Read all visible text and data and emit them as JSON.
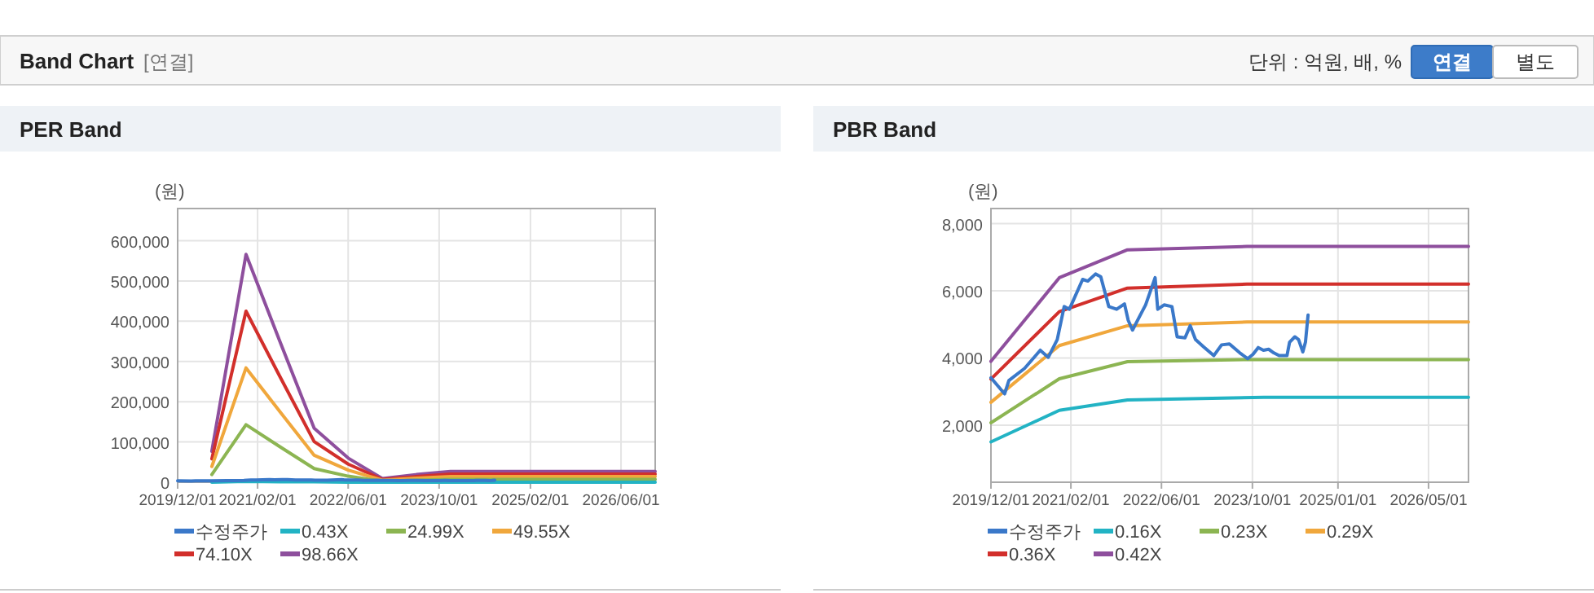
{
  "chart_data": [
    {
      "type": "other",
      "title": "Band Chart",
      "annotations": [
        "[연결]",
        "단위 : 억원, 배, %",
        "연결",
        "별도"
      ]
    },
    {
      "type": "line",
      "title": "PER Band",
      "ylabel": "(원)",
      "grid": true,
      "legend": "bottom",
      "xlim": [
        "2019-12-01",
        "2026-12-01"
      ],
      "xticks": [
        {
          "value": "2019-12-01",
          "label": "2019/12/01"
        },
        {
          "value": "2021-02-01",
          "label": "2021/02/01"
        },
        {
          "value": "2022-06-01",
          "label": "2022/06/01"
        },
        {
          "value": "2023-10-01",
          "label": "2023/10/01"
        },
        {
          "value": "2025-02-01",
          "label": "2025/02/01"
        },
        {
          "value": "2026-06-01",
          "label": "2026/06/01"
        }
      ],
      "ylim": [
        0,
        680000
      ],
      "yticks": [
        0,
        {
          "value": 100000,
          "label": "100,000"
        },
        {
          "value": 200000,
          "label": "200,000"
        },
        {
          "value": 300000,
          "label": "300,000"
        },
        {
          "value": 400000,
          "label": "400,000"
        },
        {
          "value": 500000,
          "label": "500,000"
        },
        {
          "value": 600000,
          "label": "600,000"
        }
      ],
      "series": [
        {
          "name": "수정주가",
          "color": "#3a78c9",
          "x": [
            "2019-12-01",
            "2020-02-12",
            "2020-03-06",
            "2020-05-29",
            "2020-08-21",
            "2020-10-03",
            "2020-11-20",
            "2020-12-27",
            "2021-01-24",
            "2021-04-05",
            "2021-05-03",
            "2021-06-13",
            "2021-07-11",
            "2021-08-23",
            "2021-10-04",
            "2021-11-15",
            "2021-12-05",
            "2021-12-28",
            "2022-02-08",
            "2022-03-08",
            "2022-04-28",
            "2022-05-12",
            "2022-06-15",
            "2022-07-27",
            "2022-08-24",
            "2022-10-05",
            "2022-11-02",
            "2022-11-30",
            "2023-01-11",
            "2023-03-08",
            "2023-04-19",
            "2023-05-31",
            "2023-07-26",
            "2023-09-06",
            "2023-10-04",
            "2023-11-01",
            "2023-11-29",
            "2023-12-27",
            "2024-01-24",
            "2024-02-21",
            "2024-04-03",
            "2024-04-17",
            "2024-05-15",
            "2024-06-04",
            "2024-06-27",
            "2024-07-11",
            "2024-07-25"
          ],
          "values": [
            3410,
            2930,
            3330,
            3690,
            4230,
            4020,
            4550,
            5530,
            5450,
            6340,
            6290,
            6500,
            6420,
            5530,
            5450,
            5610,
            5120,
            4830,
            5280,
            5580,
            6390,
            5450,
            5580,
            5530,
            4630,
            4600,
            4960,
            4550,
            4340,
            4070,
            4390,
            4420,
            4150,
            3980,
            4110,
            4310,
            4230,
            4260,
            4150,
            4070,
            4070,
            4470,
            4630,
            4550,
            4180,
            4470,
            5280
          ]
        },
        {
          "name": "0.43X",
          "color": "#22b3c4",
          "x": [
            "2020-06-01",
            "2020-12-01",
            "2021-06-01",
            "2021-12-01",
            "2022-06-01",
            "2022-12-01",
            "2023-06-01",
            "2023-12-01",
            "2026-12-01"
          ],
          "values": [
            0,
            2000,
            1000,
            1000,
            0,
            0,
            0,
            0,
            0
          ]
        },
        {
          "name": "24.99X",
          "color": "#8cb552",
          "x": [
            "2020-06-01",
            "2020-12-01",
            "2021-06-01",
            "2021-12-01",
            "2022-06-01",
            "2022-12-01",
            "2023-06-01",
            "2023-12-01",
            "2026-12-01"
          ],
          "values": [
            19000,
            143000,
            88000,
            34000,
            15000,
            2000,
            5000,
            7000,
            7000
          ]
        },
        {
          "name": "49.55X",
          "color": "#f0a73c",
          "x": [
            "2020-06-01",
            "2020-12-01",
            "2021-06-01",
            "2021-12-01",
            "2022-06-01",
            "2022-12-01",
            "2023-06-01",
            "2023-12-01",
            "2026-12-01"
          ],
          "values": [
            39000,
            284000,
            175000,
            67000,
            30000,
            5000,
            10000,
            14000,
            14000
          ]
        },
        {
          "name": "74.10X",
          "color": "#d22f2b",
          "x": [
            "2020-06-01",
            "2020-12-01",
            "2021-06-01",
            "2021-12-01",
            "2022-06-01",
            "2022-12-01",
            "2023-06-01",
            "2023-12-01",
            "2026-12-01"
          ],
          "values": [
            58000,
            425000,
            262000,
            101000,
            45000,
            7000,
            14000,
            20000,
            20000
          ]
        },
        {
          "name": "98.66X",
          "color": "#8e4f9d",
          "x": [
            "2020-06-01",
            "2020-12-01",
            "2021-06-01",
            "2021-12-01",
            "2022-06-01",
            "2022-12-01",
            "2023-06-01",
            "2023-12-01",
            "2026-12-01"
          ],
          "values": [
            77000,
            566000,
            349000,
            134000,
            60000,
            9000,
            19000,
            27000,
            27000
          ]
        }
      ]
    },
    {
      "type": "line",
      "title": "PBR Band",
      "ylabel": "(원)",
      "grid": true,
      "legend": "bottom",
      "xlim": [
        "2019-12-01",
        "2026-12-01"
      ],
      "xticks": [
        {
          "value": "2019-12-01",
          "label": "2019/12/01"
        },
        {
          "value": "2021-02-01",
          "label": "2021/02/01"
        },
        {
          "value": "2022-06-01",
          "label": "2022/06/01"
        },
        {
          "value": "2023-10-01",
          "label": "2023/10/01"
        },
        {
          "value": "2025-01-01",
          "label": "2025/01/01"
        },
        {
          "value": "2026-05-01",
          "label": "2026/05/01"
        }
      ],
      "ylim": [
        300,
        8450
      ],
      "yticks": [
        {
          "value": 2000,
          "label": "2,000"
        },
        {
          "value": 4000,
          "label": "4,000"
        },
        {
          "value": 6000,
          "label": "6,000"
        },
        {
          "value": 8000,
          "label": "8,000"
        }
      ],
      "series": [
        {
          "name": "수정주가",
          "color": "#3a78c9",
          "x": [
            "2019-12-01",
            "2020-02-12",
            "2020-03-06",
            "2020-05-29",
            "2020-08-21",
            "2020-10-03",
            "2020-11-20",
            "2020-12-27",
            "2021-01-24",
            "2021-04-05",
            "2021-05-03",
            "2021-06-13",
            "2021-07-11",
            "2021-08-23",
            "2021-10-04",
            "2021-11-15",
            "2021-12-05",
            "2021-12-28",
            "2022-02-08",
            "2022-03-08",
            "2022-04-28",
            "2022-05-12",
            "2022-06-15",
            "2022-07-27",
            "2022-08-24",
            "2022-10-05",
            "2022-11-02",
            "2022-11-30",
            "2023-01-11",
            "2023-03-08",
            "2023-04-19",
            "2023-05-31",
            "2023-07-26",
            "2023-09-06",
            "2023-10-04",
            "2023-11-01",
            "2023-11-29",
            "2023-12-27",
            "2024-01-24",
            "2024-02-21",
            "2024-04-03",
            "2024-04-17",
            "2024-05-15",
            "2024-06-04",
            "2024-06-27",
            "2024-07-11",
            "2024-07-25"
          ],
          "values": [
            3410,
            2930,
            3330,
            3690,
            4230,
            4020,
            4550,
            5530,
            5450,
            6340,
            6290,
            6500,
            6420,
            5530,
            5450,
            5610,
            5120,
            4830,
            5280,
            5580,
            6390,
            5450,
            5580,
            5530,
            4630,
            4600,
            4960,
            4550,
            4340,
            4070,
            4390,
            4420,
            4150,
            3980,
            4110,
            4310,
            4230,
            4260,
            4150,
            4070,
            4070,
            4470,
            4630,
            4550,
            4180,
            4470,
            5280
          ]
        },
        {
          "name": "0.16X",
          "color": "#22b3c4",
          "x": [
            "2019-12-01",
            "2020-12-01",
            "2021-12-01",
            "2023-12-01",
            "2026-12-01"
          ],
          "values": [
            1500,
            2440,
            2750,
            2830,
            2830
          ]
        },
        {
          "name": "0.23X",
          "color": "#8cb552",
          "x": [
            "2019-12-01",
            "2020-12-01",
            "2021-12-01",
            "2023-09-01",
            "2026-12-01"
          ],
          "values": [
            2070,
            3380,
            3890,
            3950,
            3950
          ]
        },
        {
          "name": "0.29X",
          "color": "#f0a73c",
          "x": [
            "2019-12-01",
            "2020-12-01",
            "2021-12-01",
            "2023-09-01",
            "2026-12-01"
          ],
          "values": [
            2680,
            4370,
            4960,
            5070,
            5070
          ]
        },
        {
          "name": "0.36X",
          "color": "#d22f2b",
          "x": [
            "2019-12-01",
            "2020-12-01",
            "2021-12-01",
            "2023-09-01",
            "2026-12-01"
          ],
          "values": [
            3370,
            5380,
            6080,
            6200,
            6200
          ]
        },
        {
          "name": "0.42X",
          "color": "#8e4f9d",
          "x": [
            "2019-12-01",
            "2020-12-01",
            "2021-12-01",
            "2023-09-01",
            "2026-12-01"
          ],
          "values": [
            3900,
            6390,
            7220,
            7320,
            7320
          ]
        }
      ]
    }
  ]
}
